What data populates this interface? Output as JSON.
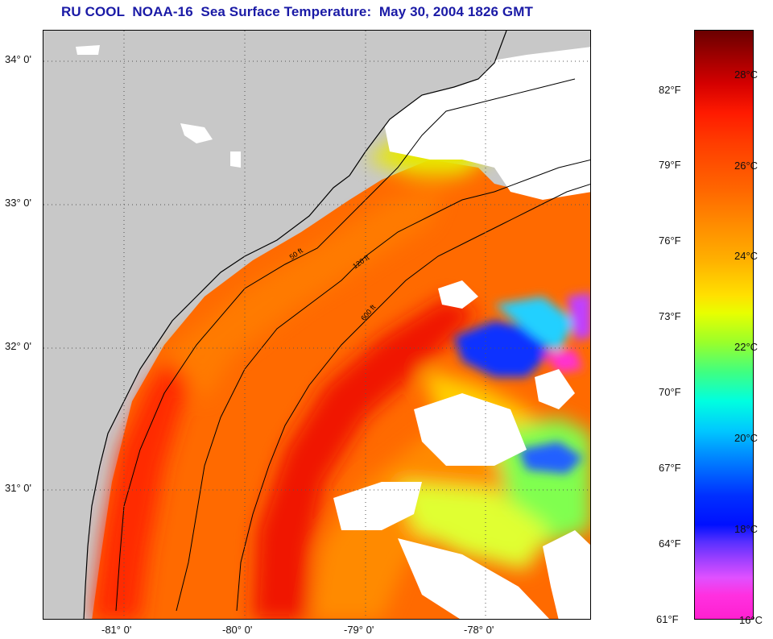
{
  "title": "RU COOL  NOAA-16  Sea Surface Temperature:  May 30, 2004 1826 GMT",
  "colors": {
    "land": "#c8c8c8",
    "cloud": "#ffffff",
    "title": "#1a1aa6"
  },
  "map": {
    "lat_labels": [
      "34° 0'",
      "33° 0'",
      "32° 0'",
      "31° 0'"
    ],
    "lon_labels": [
      "-81° 0'",
      "-80° 0'",
      "-79° 0'",
      "-78° 0'"
    ],
    "contour_labels": [
      "50 ft",
      "120 ft",
      "600 ft"
    ]
  },
  "colorbar": {
    "fahrenheit": [
      "82°F",
      "79°F",
      "76°F",
      "73°F",
      "70°F",
      "67°F",
      "64°F",
      "61°F"
    ],
    "celsius": [
      "28°C",
      "26°C",
      "24°C",
      "22°C",
      "20°C",
      "18°C",
      "16°C"
    ]
  }
}
